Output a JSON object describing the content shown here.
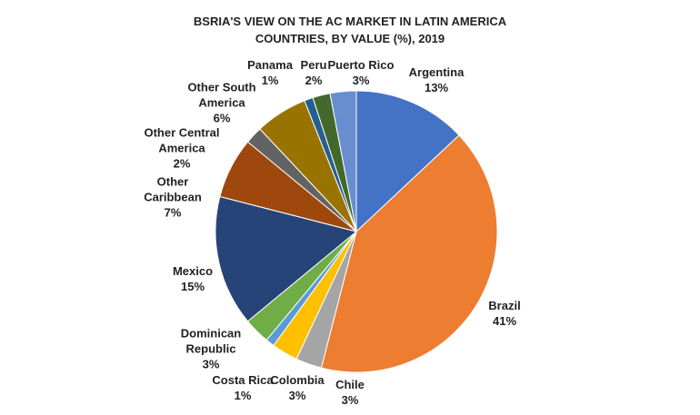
{
  "chart_data": {
    "type": "pie",
    "title": "BSRIA'S VIEW ON THE AC MARKET IN LATIN AMERICA COUNTRIES, BY VALUE (%), 2019",
    "categories": [
      "Argentina",
      "Brazil",
      "Chile",
      "Colombia",
      "Costa Rica",
      "Dominican Republic",
      "Mexico",
      "Other Caribbean",
      "Other Central America",
      "Other South America",
      "Panama",
      "Peru",
      "Puerto Rico"
    ],
    "values": [
      13,
      41,
      3,
      3,
      1,
      3,
      15,
      7,
      2,
      6,
      1,
      2,
      3
    ],
    "value_labels": [
      "13%",
      "41%",
      "3%",
      "3%",
      "1%",
      "3%",
      "15%",
      "7%",
      "2%",
      "6%",
      "1%",
      "2%",
      "3%"
    ],
    "colors": [
      "#4472c4",
      "#ed7d31",
      "#a5a5a5",
      "#ffc000",
      "#5b9bd5",
      "#70ad47",
      "#264478",
      "#9e480e",
      "#636363",
      "#997300",
      "#255e91",
      "#43682b",
      "#698ed0"
    ]
  }
}
